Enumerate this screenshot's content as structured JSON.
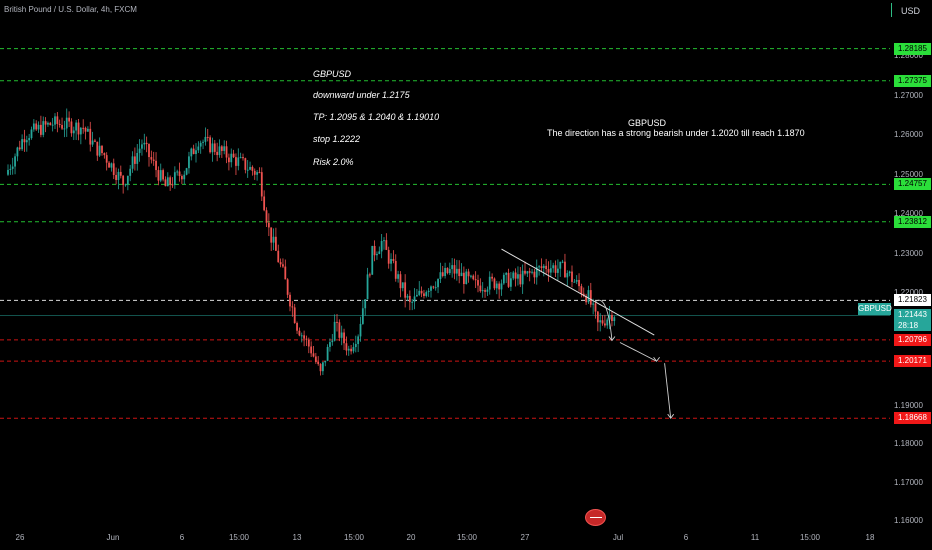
{
  "header": {
    "title": "British Pound / U.S. Dollar, 4h, FXCM",
    "currency": "USD"
  },
  "symbol_badge": "GBPUSD",
  "notes": {
    "plan": [
      "GBPUSD",
      "downward under  1.2175",
      "TP:  1.2095  & 1.2040 & 1.19010",
      " stop 1.2222",
      "Risk 2.0%"
    ],
    "forecast": [
      "GBPUSD",
      "The direction has a strong bearish under  1.2020  till reach 1.1870"
    ]
  },
  "colors": {
    "bull": "#26a69a",
    "bear": "#ef5350",
    "green_level": "#2bde3a",
    "red_level": "#f01818",
    "white_level": "#ffffff"
  },
  "chart_data": {
    "type": "candlestick",
    "title": "British Pound / U.S. Dollar, 4h, FXCM",
    "ylim": [
      1.155,
      1.295
    ],
    "y_ticks": [
      "1.28000",
      "1.27000",
      "1.26000",
      "1.25000",
      "1.24000",
      "1.23000",
      "1.22000",
      "1.19000",
      "1.18000",
      "1.17000",
      "1.16000"
    ],
    "x_ticks": [
      "26",
      "Jun",
      "6",
      "15:00",
      "13",
      "15:00",
      "20",
      "15:00",
      "27",
      "Jul",
      "6",
      "11",
      "15:00",
      "18"
    ],
    "grid": false,
    "price_levels": [
      {
        "value": 1.28185,
        "label": "1.28185",
        "kind": "green"
      },
      {
        "value": 1.27375,
        "label": "1.27375",
        "kind": "green"
      },
      {
        "value": 1.24757,
        "label": "1.24757",
        "kind": "green"
      },
      {
        "value": 1.23812,
        "label": "1.23812",
        "kind": "green"
      },
      {
        "value": 1.21823,
        "label": "1.21823",
        "kind": "white"
      },
      {
        "value": 1.20796,
        "label": "1.20796",
        "kind": "red"
      },
      {
        "value": 1.20171,
        "label": "1.20171",
        "kind": "red"
      },
      {
        "value": 1.18668,
        "label": "1.18668",
        "kind": "red"
      }
    ],
    "current_price": {
      "value": 1.21443,
      "label": "1.21443",
      "countdown": "28:18"
    },
    "anchors": [
      [
        0,
        1.25
      ],
      [
        8,
        1.26
      ],
      [
        20,
        1.263
      ],
      [
        33,
        1.262
      ],
      [
        38,
        1.257
      ],
      [
        42,
        1.255
      ],
      [
        50,
        1.248
      ],
      [
        58,
        1.258
      ],
      [
        68,
        1.247
      ],
      [
        76,
        1.251
      ],
      [
        82,
        1.259
      ],
      [
        88,
        1.257
      ],
      [
        100,
        1.253
      ],
      [
        108,
        1.25
      ],
      [
        112,
        1.236
      ],
      [
        118,
        1.225
      ],
      [
        124,
        1.212
      ],
      [
        130,
        1.205
      ],
      [
        134,
        1.198
      ],
      [
        140,
        1.212
      ],
      [
        146,
        1.205
      ],
      [
        150,
        1.21
      ],
      [
        156,
        1.23
      ],
      [
        160,
        1.233
      ],
      [
        166,
        1.225
      ],
      [
        172,
        1.217
      ],
      [
        180,
        1.222
      ],
      [
        190,
        1.226
      ],
      [
        200,
        1.222
      ],
      [
        210,
        1.223
      ],
      [
        220,
        1.224
      ],
      [
        230,
        1.227
      ],
      [
        238,
        1.226
      ],
      [
        242,
        1.223
      ],
      [
        248,
        1.219
      ],
      [
        252,
        1.212
      ],
      [
        254,
        1.213
      ],
      [
        258,
        1.215
      ]
    ],
    "trendline": [
      [
        210,
        1.2312
      ],
      [
        275,
        1.2094
      ]
    ],
    "projection": [
      [
        250,
        1.218
      ],
      [
        257,
        1.2078
      ],
      [
        276,
        1.2017
      ],
      [
        282,
        1.1867
      ]
    ]
  }
}
